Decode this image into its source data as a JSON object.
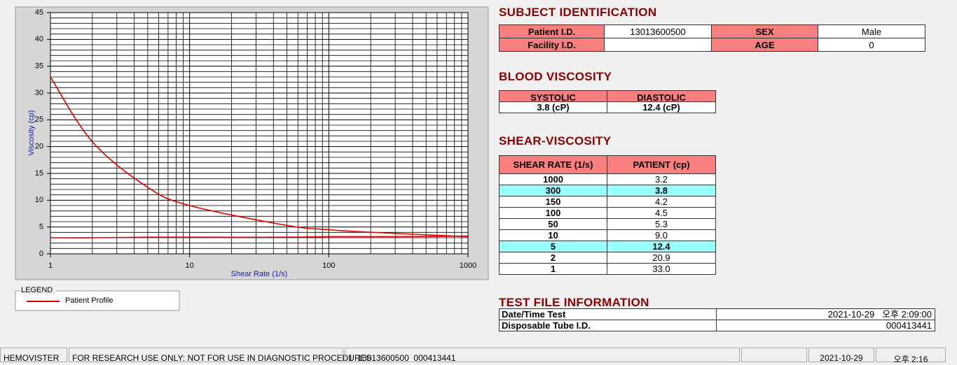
{
  "chart_data": {
    "type": "line",
    "x": [
      1,
      2,
      5,
      10,
      50,
      100,
      150,
      300,
      1000
    ],
    "series": [
      {
        "name": "Patient Profile",
        "color": "#dd0000",
        "values": [
          33.0,
          20.9,
          12.4,
          9.0,
          5.3,
          4.5,
          4.2,
          3.8,
          3.2
        ]
      },
      {
        "color": "#dd0000",
        "values": [
          3.0,
          3.0,
          3.1,
          3.1,
          3.1,
          3.2,
          3.2,
          3.2,
          3.3
        ]
      }
    ],
    "xlabel": "Shear Rate (1/s)",
    "ylabel": "Viscosity (cp)",
    "xscale": "log",
    "xlim": [
      1,
      1000
    ],
    "xticks": [
      1,
      10,
      100,
      1000
    ],
    "xticks_minor": [
      2,
      3,
      4,
      5,
      6,
      7,
      8,
      9,
      20,
      30,
      40,
      50,
      60,
      70,
      80,
      90,
      200,
      300,
      400,
      500,
      600,
      700,
      800,
      900
    ],
    "ylim": [
      0,
      45
    ],
    "yticks": [
      0,
      5,
      10,
      15,
      20,
      25,
      30,
      35,
      40,
      45
    ],
    "yticks_minor": [
      1,
      2,
      3,
      4,
      6,
      7,
      8,
      9,
      11,
      12,
      13,
      14,
      16,
      17,
      18,
      19,
      21,
      22,
      23,
      24,
      26,
      27,
      28,
      29,
      31,
      32,
      33,
      34,
      36,
      37,
      38,
      39,
      41,
      42,
      43,
      44
    ],
    "grid": true,
    "legend_title": "LEGEND"
  },
  "subject": {
    "heading": "SUBJECT IDENTIFICATION",
    "patient_id_label": "Patient I.D.",
    "patient_id": "13013600500",
    "sex_label": "SEX",
    "sex": "Male",
    "facility_label": "Facility I.D.",
    "age_label": "AGE",
    "age": "0"
  },
  "blood_viscosity": {
    "heading": "BLOOD VISCOSITY",
    "columns": [
      "SYSTOLIC",
      "DIASTOLIC"
    ],
    "values": [
      "3.8 (cP)",
      "12.4 (cP)"
    ]
  },
  "shear_viscosity": {
    "heading": "SHEAR-VISCOSITY",
    "columns": [
      "SHEAR RATE (1/s)",
      "PATIENT (cp)"
    ],
    "rows": [
      [
        "1000",
        "3.2"
      ],
      [
        "300",
        "3.8"
      ],
      [
        "150",
        "4.2"
      ],
      [
        "100",
        "4.5"
      ],
      [
        "50",
        "5.3"
      ],
      [
        "10",
        "9.0"
      ],
      [
        "5",
        "12.4"
      ],
      [
        "2",
        "20.9"
      ],
      [
        "1",
        "33.0"
      ]
    ],
    "highlighted_rows": [
      1,
      6
    ]
  },
  "test_file": {
    "heading": "TEST FILE INFORMATION",
    "rows": [
      [
        "Date/Time Test",
        "2021-10-29   오후 2:09:00"
      ],
      [
        "Disposable Tube I.D.",
        "000413441"
      ]
    ]
  },
  "status_bar": [
    "HEMOVISTER",
    "FOR RESEARCH USE ONLY: NOT FOR USE IN DIAGNOSTIC PROCEDURES",
    "1  13013600500  000413441",
    "2021-10-29",
    "오후 2:16"
  ]
}
